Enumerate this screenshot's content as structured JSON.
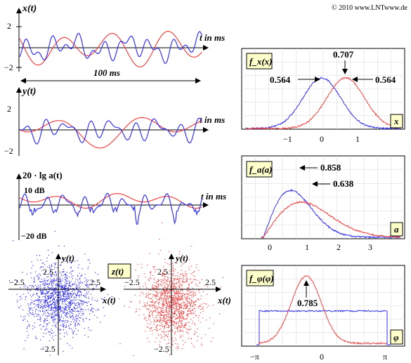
{
  "copyright": "© 2010 www.LNTwww.de",
  "ax1": {
    "ylabel": "x(t)",
    "xlabel": "t in ms",
    "ticks": [
      "2",
      "−2"
    ],
    "span_label": "100 ms"
  },
  "ax2": {
    "ylabel": "y(t)",
    "xlabel": "t in ms",
    "ticks": [
      "2",
      "−2"
    ]
  },
  "ax3": {
    "ylabel": "20 · lg a(t)",
    "xlabel": "t in ms",
    "ticks": [
      "10 dB",
      "−20 dB"
    ]
  },
  "scatter": {
    "yname": "y(t)",
    "xname": "x(t)",
    "mid_label": "z(t)",
    "left_ticks": [
      "2.5",
      "−2.5",
      "2.5",
      "−2.5"
    ],
    "right_ticks": [
      "2.5",
      "−2.5",
      "2.5",
      "−2.5"
    ]
  },
  "pdf1": {
    "label": "f_x(x)",
    "axis_var": "x",
    "peak_label": "0.707",
    "left_label": "0.564",
    "right_label": "0.564",
    "ticks": [
      "−1",
      "0",
      "1"
    ]
  },
  "pdf2": {
    "label": "f_a(a)",
    "axis_var": "a",
    "blue_label": "0.858",
    "red_label": "0.638",
    "ticks": [
      "0",
      "1",
      "2",
      "3"
    ]
  },
  "pdf3": {
    "label": "f_φ(φ)",
    "axis_var": "φ",
    "peak_label": "0.785",
    "ticks": [
      "−π",
      "0",
      "π"
    ]
  },
  "colors": {
    "blue": "#3333ee",
    "red": "#ee4444",
    "grid": "#cccccc",
    "label_bg": "#ffffcc"
  }
}
